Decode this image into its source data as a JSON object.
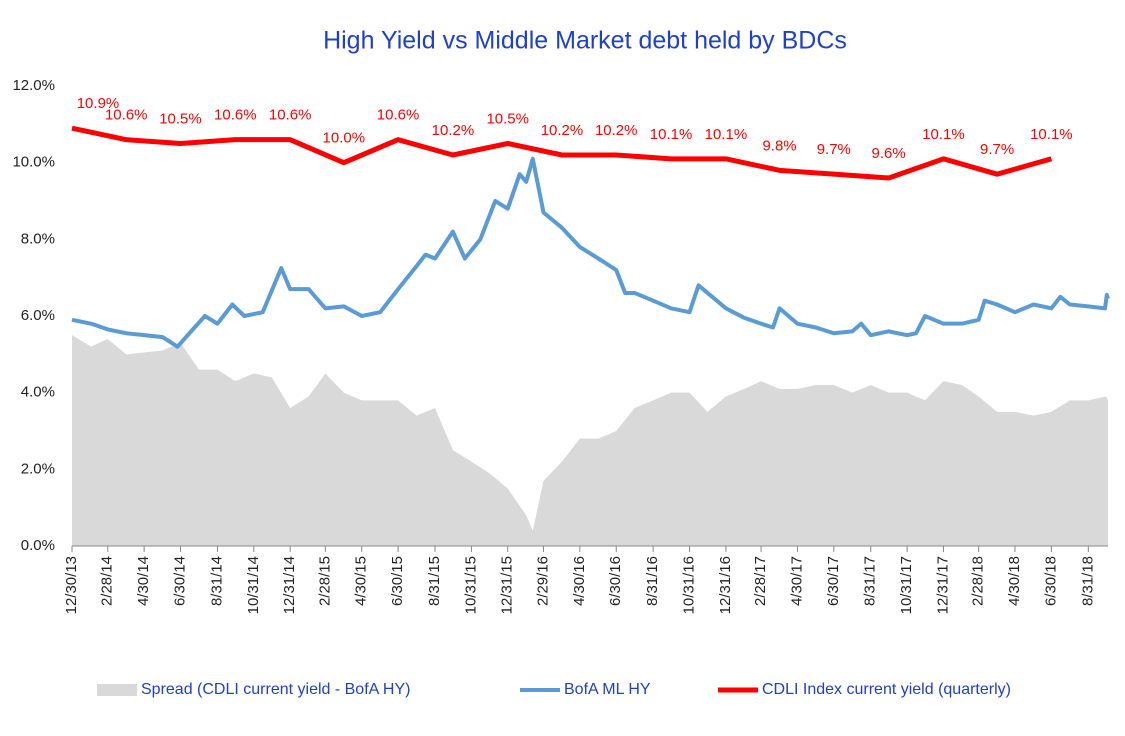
{
  "chart_data": {
    "type": "line",
    "title": "High Yield  vs  Middle Market debt held by BDCs",
    "xlim": [
      "12/30/13",
      "10/3/18"
    ],
    "xticks": [
      "12/30/13",
      "2/28/14",
      "4/30/14",
      "6/30/14",
      "8/31/14",
      "10/31/14",
      "12/31/14",
      "2/28/15",
      "4/30/15",
      "6/30/15",
      "8/31/15",
      "10/31/15",
      "12/31/15",
      "2/29/16",
      "4/30/16",
      "6/30/16",
      "8/31/16",
      "10/31/16",
      "12/31/16",
      "2/28/17",
      "4/30/17",
      "6/30/17",
      "8/31/17",
      "10/31/17",
      "12/31/17",
      "2/28/18",
      "4/30/18",
      "6/30/18",
      "8/31/18"
    ],
    "ylim": [
      0,
      12
    ],
    "yticks": [
      {
        "value": 0,
        "label": "0.0%"
      },
      {
        "value": 2,
        "label": "2.0%"
      },
      {
        "value": 4,
        "label": "4.0%"
      },
      {
        "value": 6,
        "label": "6.0%"
      },
      {
        "value": 8,
        "label": "8.0%"
      },
      {
        "value": 10,
        "label": "10.0%"
      },
      {
        "value": 12,
        "label": "12.0%"
      }
    ],
    "grid": false,
    "legend": "bottom",
    "series": [
      {
        "name": "Spread (CDLI current yield - BofA HY)",
        "style": "area",
        "color": "#d9d9d9",
        "x": [
          "12/30/13",
          "1/31/14",
          "2/28/14",
          "3/31/14",
          "4/30/14",
          "5/31/14",
          "6/30/14",
          "7/31/14",
          "8/31/14",
          "9/30/14",
          "10/31/14",
          "11/30/14",
          "12/31/14",
          "1/31/15",
          "2/28/15",
          "3/31/15",
          "4/30/15",
          "5/31/15",
          "6/30/15",
          "7/31/15",
          "8/31/15",
          "9/30/15",
          "10/31/15",
          "11/30/15",
          "12/31/15",
          "1/31/16",
          "2/11/16",
          "2/29/16",
          "3/31/16",
          "4/30/16",
          "5/31/16",
          "6/30/16",
          "7/31/16",
          "8/31/16",
          "9/30/16",
          "10/31/16",
          "11/30/16",
          "12/31/16",
          "1/31/17",
          "2/28/17",
          "3/31/17",
          "4/30/17",
          "5/31/17",
          "6/30/17",
          "7/31/17",
          "8/31/17",
          "9/30/17",
          "10/31/17",
          "11/30/17",
          "12/31/17",
          "1/31/18",
          "2/28/18",
          "3/31/18",
          "4/30/18",
          "5/31/18",
          "6/30/18",
          "7/31/18",
          "8/31/18",
          "9/30/18",
          "10/3/18"
        ],
        "values": [
          5.5,
          5.2,
          5.4,
          5.0,
          5.05,
          5.1,
          5.3,
          4.6,
          4.6,
          4.3,
          4.5,
          4.4,
          3.6,
          3.9,
          4.5,
          4.0,
          3.8,
          3.8,
          3.8,
          3.4,
          3.6,
          2.5,
          2.2,
          1.9,
          1.5,
          0.8,
          0.4,
          1.7,
          2.2,
          2.8,
          2.8,
          3.0,
          3.6,
          3.8,
          4.0,
          4.0,
          3.5,
          3.9,
          4.1,
          4.3,
          4.1,
          4.1,
          4.2,
          4.2,
          4.0,
          4.2,
          4.0,
          4.0,
          3.8,
          4.3,
          4.2,
          3.9,
          3.5,
          3.5,
          3.4,
          3.5,
          3.8,
          3.8,
          3.9,
          3.8
        ]
      },
      {
        "name": "BofA ML HY",
        "style": "line",
        "color": "#5b9bd5",
        "x": [
          "12/30/13",
          "1/31/14",
          "2/28/14",
          "3/31/14",
          "4/30/14",
          "5/31/14",
          "6/25/14",
          "7/15/14",
          "8/10/14",
          "8/31/14",
          "9/25/14",
          "10/15/14",
          "11/15/14",
          "12/16/14",
          "12/31/14",
          "1/31/15",
          "2/28/15",
          "3/31/15",
          "4/30/15",
          "5/31/15",
          "6/30/15",
          "7/31/15",
          "8/15/15",
          "8/31/15",
          "9/30/15",
          "10/20/15",
          "11/15/15",
          "12/10/15",
          "12/31/15",
          "1/20/16",
          "1/31/16",
          "2/11/16",
          "2/29/16",
          "3/31/16",
          "4/30/16",
          "5/31/16",
          "6/30/16",
          "7/15/16",
          "7/31/16",
          "8/31/16",
          "9/30/16",
          "10/31/16",
          "11/15/16",
          "12/31/16",
          "1/31/17",
          "2/28/17",
          "3/20/17",
          "3/31/17",
          "4/30/17",
          "5/31/17",
          "6/30/17",
          "7/31/17",
          "8/15/17",
          "8/31/17",
          "9/30/17",
          "10/31/17",
          "11/15/17",
          "11/30/17",
          "12/31/17",
          "1/31/18",
          "2/28/18",
          "3/10/18",
          "3/31/18",
          "4/30/18",
          "5/31/18",
          "6/30/18",
          "7/15/18",
          "7/31/18",
          "8/31/18",
          "9/28/18",
          "10/1/18",
          "10/3/18"
        ],
        "values": [
          5.9,
          5.8,
          5.65,
          5.55,
          5.5,
          5.45,
          5.2,
          5.55,
          6.0,
          5.8,
          6.3,
          6.0,
          6.1,
          7.25,
          6.7,
          6.7,
          6.2,
          6.25,
          6.0,
          6.1,
          6.7,
          7.3,
          7.6,
          7.5,
          8.2,
          7.5,
          8.0,
          9.0,
          8.8,
          9.7,
          9.5,
          10.1,
          8.7,
          8.3,
          7.8,
          7.5,
          7.2,
          6.6,
          6.6,
          6.4,
          6.2,
          6.1,
          6.8,
          6.2,
          5.95,
          5.8,
          5.7,
          6.2,
          5.8,
          5.7,
          5.55,
          5.6,
          5.8,
          5.5,
          5.6,
          5.5,
          5.55,
          6.0,
          5.8,
          5.8,
          5.9,
          6.4,
          6.3,
          6.1,
          6.3,
          6.2,
          6.5,
          6.3,
          6.25,
          6.2,
          6.55,
          6.45
        ]
      },
      {
        "name": "CDLI Index current yield (quarterly)",
        "style": "line",
        "color": "#ff0000",
        "x": [
          "12/30/13",
          "3/31/14",
          "6/30/14",
          "9/30/14",
          "12/31/14",
          "3/31/15",
          "6/30/15",
          "9/30/15",
          "12/31/15",
          "3/31/16",
          "6/30/16",
          "9/30/16",
          "12/31/16",
          "3/31/17",
          "6/30/17",
          "9/30/17",
          "12/31/17",
          "3/31/18",
          "6/30/18"
        ],
        "values": [
          10.9,
          10.6,
          10.5,
          10.6,
          10.6,
          10.0,
          10.6,
          10.2,
          10.5,
          10.2,
          10.2,
          10.1,
          10.1,
          9.8,
          9.7,
          9.6,
          10.1,
          9.7,
          10.1
        ],
        "value_labels": [
          "10.9%",
          "10.6%",
          "10.5%",
          "10.6%",
          "10.6%",
          "10.0%",
          "10.6%",
          "10.2%",
          "10.5%",
          "10.2%",
          "10.2%",
          "10.1%",
          "10.1%",
          "9.8%",
          "9.7%",
          "9.6%",
          "10.1%",
          "9.7%",
          "10.1%"
        ]
      }
    ]
  }
}
